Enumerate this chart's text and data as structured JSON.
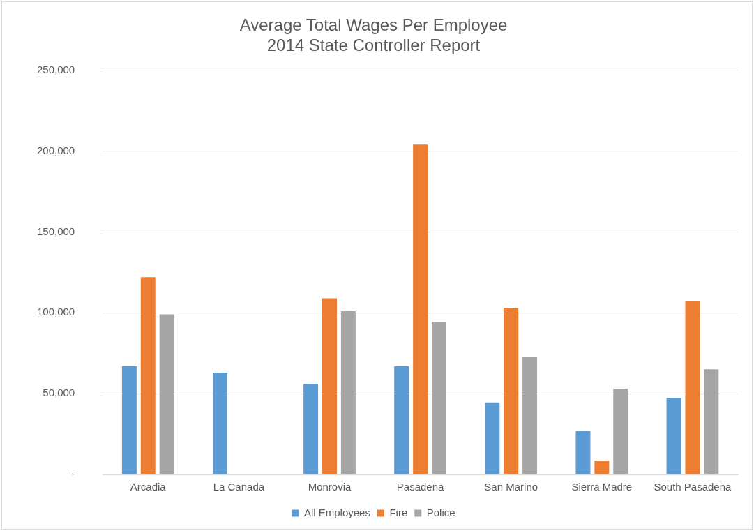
{
  "chart_data": {
    "type": "bar",
    "title": "Average Total Wages Per Employee",
    "subtitle": "2014 State Controller Report",
    "categories": [
      "Arcadia",
      "La Canada",
      "Monrovia",
      "Pasadena",
      "San Marino",
      "Sierra Madre",
      "South Pasadena"
    ],
    "series": [
      {
        "name": "All Employees",
        "color": "#5b9bd5",
        "values": [
          67000,
          63000,
          56000,
          67000,
          44500,
          27000,
          47500
        ]
      },
      {
        "name": "Fire",
        "color": "#ed7d31",
        "values": [
          122000,
          null,
          109000,
          204000,
          103000,
          8500,
          107000
        ]
      },
      {
        "name": "Police",
        "color": "#a5a5a5",
        "values": [
          99000,
          null,
          101000,
          94500,
          72500,
          53000,
          65000
        ]
      }
    ],
    "ylim": [
      0,
      250000
    ],
    "yticks": [
      {
        "value": 0,
        "label": "-"
      },
      {
        "value": 50000,
        "label": "50,000"
      },
      {
        "value": 100000,
        "label": "100,000"
      },
      {
        "value": 150000,
        "label": "150,000"
      },
      {
        "value": 200000,
        "label": "200,000"
      },
      {
        "value": 250000,
        "label": "250,000"
      }
    ],
    "grid": "y",
    "legend": "bottom"
  }
}
